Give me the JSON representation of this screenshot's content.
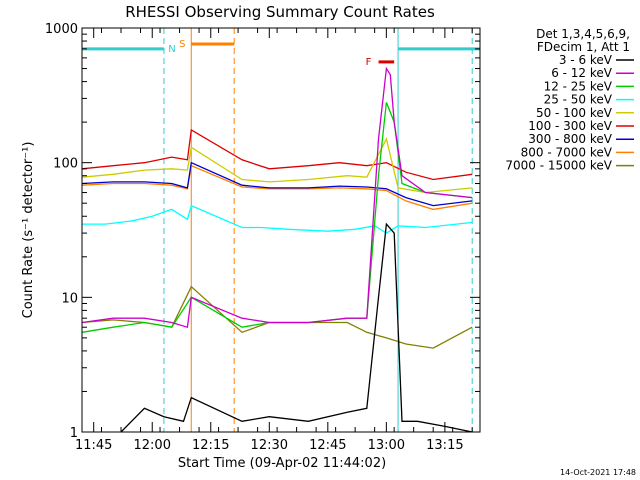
{
  "chart_data": {
    "type": "line",
    "title": "RHESSI Observing Summary Count Rates",
    "xlabel": "Start Time (09-Apr-02 11:44:02)",
    "ylabel": "Count Rate (s⁻¹ detector⁻¹)",
    "ylog": true,
    "ylim": [
      1,
      1000
    ],
    "x_range_minutes": [
      "11:42",
      "13:24"
    ],
    "xticks": [
      "11:45",
      "12:00",
      "12:15",
      "12:30",
      "12:45",
      "13:00",
      "13:15"
    ],
    "yticks": [
      "1",
      "10",
      "100",
      "1000"
    ],
    "footer_date": "14-Oct-2021 17:48",
    "legend_header": [
      "Det 1,3,4,5,6,9,",
      "FDecim 1, Att 1"
    ],
    "flags": [
      {
        "label": "N",
        "color": "#33cccc",
        "intervals": [
          [
            "11:42",
            "12:03"
          ],
          [
            "13:03",
            "13:24"
          ]
        ],
        "y": 700
      },
      {
        "label": "S",
        "color": "#ff8000",
        "intervals": [
          [
            "12:10",
            "12:21"
          ]
        ],
        "y": 760
      },
      {
        "label": "F",
        "color": "#dd0000",
        "intervals": [
          [
            "12:58",
            "13:02"
          ]
        ],
        "y": 560
      }
    ],
    "vlines": [
      {
        "time": "12:03",
        "color": "#33cccc",
        "style": "dashed"
      },
      {
        "time": "12:10",
        "color": "#ff8000",
        "style": "solid"
      },
      {
        "time": "12:21",
        "color": "#ff8000",
        "style": "dashed"
      },
      {
        "time": "13:03",
        "color": "#33cccc",
        "style": "solid"
      },
      {
        "time": "13:22",
        "color": "#33cccc",
        "style": "dashed"
      }
    ],
    "series": [
      {
        "name": "3 - 6 keV",
        "color": "#000000",
        "x": [
          "11:52",
          "11:58",
          "12:03",
          "12:08",
          "12:10",
          "12:23",
          "12:30",
          "12:40",
          "12:50",
          "12:55",
          "12:58",
          "13:00",
          "13:02",
          "13:04",
          "13:08",
          "13:15",
          "13:22"
        ],
        "y": [
          1,
          1.5,
          1.3,
          1.2,
          1.8,
          1.2,
          1.3,
          1.2,
          1.4,
          1.5,
          10,
          35,
          30,
          1.2,
          1.2,
          1.1,
          1.0
        ]
      },
      {
        "name": "6 - 12 keV",
        "color": "#cc00cc",
        "x": [
          "11:42",
          "11:50",
          "11:58",
          "12:05",
          "12:09",
          "12:10",
          "12:23",
          "12:30",
          "12:40",
          "12:50",
          "12:55",
          "12:58",
          "13:00",
          "13:01",
          "13:02",
          "13:04",
          "13:10",
          "13:22"
        ],
        "y": [
          6.5,
          7,
          7,
          6.5,
          6,
          10,
          7,
          6.5,
          6.5,
          7,
          7,
          150,
          500,
          450,
          200,
          80,
          60,
          55
        ]
      },
      {
        "name": "12 - 25 keV",
        "color": "#00cc00",
        "x": [
          "11:42",
          "11:50",
          "11:58",
          "12:05",
          "12:10",
          "12:23",
          "12:30",
          "12:40",
          "12:50",
          "12:55",
          "12:58",
          "13:00",
          "13:02",
          "13:04",
          "13:10",
          "13:22"
        ],
        "y": [
          5.5,
          6,
          6.5,
          6,
          10,
          6,
          6.5,
          6.5,
          7,
          7,
          80,
          280,
          200,
          70,
          60,
          55
        ]
      },
      {
        "name": "25 - 50 keV",
        "color": "#00ffff",
        "x": [
          "11:42",
          "11:48",
          "11:55",
          "12:00",
          "12:05",
          "12:09",
          "12:10",
          "12:23",
          "12:28",
          "12:35",
          "12:45",
          "12:52",
          "12:57",
          "13:00",
          "13:03",
          "13:10",
          "13:18",
          "13:22"
        ],
        "y": [
          35,
          35,
          37,
          40,
          45,
          38,
          48,
          33,
          33,
          32,
          31,
          32,
          34,
          30,
          34,
          33,
          35,
          36
        ]
      },
      {
        "name": "50 - 100 keV",
        "color": "#cccc00",
        "x": [
          "11:42",
          "11:50",
          "11:58",
          "12:05",
          "12:09",
          "12:10",
          "12:23",
          "12:30",
          "12:40",
          "12:50",
          "12:55",
          "13:00",
          "13:03",
          "13:10",
          "13:22"
        ],
        "y": [
          78,
          82,
          88,
          90,
          88,
          130,
          75,
          72,
          75,
          80,
          78,
          150,
          65,
          60,
          65
        ]
      },
      {
        "name": "100 - 300 keV",
        "color": "#dd0000",
        "x": [
          "11:42",
          "11:50",
          "11:58",
          "12:05",
          "12:09",
          "12:10",
          "12:23",
          "12:30",
          "12:40",
          "12:48",
          "12:55",
          "13:00",
          "13:05",
          "13:12",
          "13:22"
        ],
        "y": [
          90,
          95,
          100,
          110,
          105,
          175,
          105,
          90,
          95,
          100,
          95,
          100,
          85,
          75,
          82
        ]
      },
      {
        "name": "300 - 800 keV",
        "color": "#0000cc",
        "x": [
          "11:42",
          "11:50",
          "11:58",
          "12:05",
          "12:09",
          "12:10",
          "12:23",
          "12:30",
          "12:40",
          "12:48",
          "12:55",
          "13:00",
          "13:05",
          "13:12",
          "13:22"
        ],
        "y": [
          70,
          72,
          72,
          70,
          65,
          100,
          68,
          65,
          65,
          67,
          66,
          64,
          55,
          48,
          52
        ]
      },
      {
        "name": "800 - 7000 keV",
        "color": "#ff8000",
        "x": [
          "11:42",
          "11:50",
          "11:58",
          "12:05",
          "12:09",
          "12:10",
          "12:23",
          "12:30",
          "12:40",
          "12:48",
          "12:55",
          "13:00",
          "13:05",
          "13:12",
          "13:22"
        ],
        "y": [
          68,
          70,
          70,
          68,
          64,
          95,
          66,
          64,
          64,
          65,
          64,
          62,
          52,
          45,
          50
        ]
      },
      {
        "name": "7000 - 15000 keV",
        "color": "#808000",
        "x": [
          "11:42",
          "11:50",
          "11:58",
          "12:05",
          "12:10",
          "12:23",
          "12:30",
          "12:40",
          "12:50",
          "12:55",
          "13:00",
          "13:05",
          "13:12",
          "13:22"
        ],
        "y": [
          6.5,
          6.8,
          6.5,
          6,
          12,
          5.5,
          6.5,
          6.5,
          6.5,
          5.5,
          5,
          4.5,
          4.2,
          6
        ]
      }
    ]
  }
}
